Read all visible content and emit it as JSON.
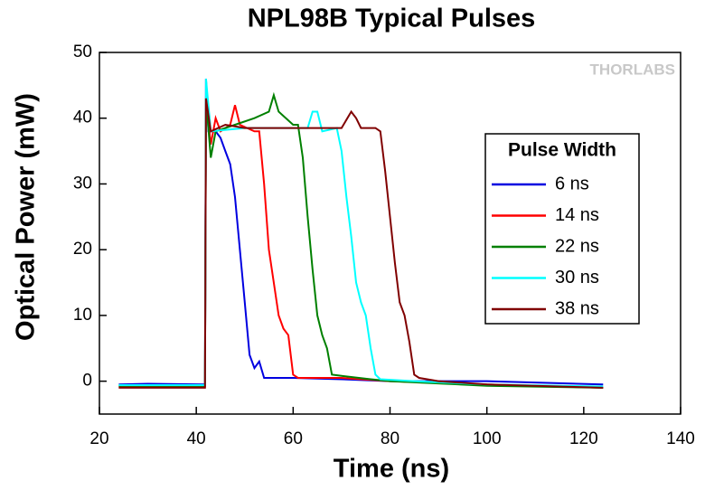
{
  "chart_data": {
    "type": "line",
    "title": "NPL98B Typical Pulses",
    "x_label": "Time (ns)",
    "y_label": "Optical Power (mW)",
    "watermark": "THORLABS",
    "legend_title": "Pulse Width",
    "legend": "right",
    "xlim": [
      20,
      140
    ],
    "xticks": [
      20,
      40,
      60,
      80,
      100,
      120,
      140
    ],
    "ylim": [
      -5,
      50
    ],
    "yticks": [
      0,
      10,
      20,
      30,
      40,
      50
    ],
    "series": [
      {
        "name": "6 ns",
        "color": "#0000e0",
        "x": [
          24,
          30,
          41.8,
          42,
          42.5,
          44,
          45,
          46,
          47,
          48,
          49,
          50,
          51,
          52,
          53,
          54,
          60,
          70,
          80,
          100,
          124
        ],
        "values": [
          -0.5,
          -0.4,
          -0.5,
          46,
          38,
          38,
          37,
          35,
          33,
          28,
          20,
          12,
          4,
          2,
          3,
          0.5,
          0.5,
          0.3,
          0,
          0,
          -0.5
        ]
      },
      {
        "name": "14 ns",
        "color": "#ff0000",
        "x": [
          24,
          30,
          41.8,
          42,
          43,
          44,
          45,
          47,
          48,
          49,
          52,
          53,
          54,
          55,
          57,
          58,
          59,
          60,
          61,
          70,
          80,
          100,
          124
        ],
        "values": [
          -0.8,
          -0.8,
          -0.8,
          43,
          36,
          40,
          38,
          39,
          42,
          39,
          38,
          38,
          30,
          20,
          10,
          8,
          7,
          1,
          0.5,
          0.5,
          0,
          -0.5,
          -1
        ]
      },
      {
        "name": "22 ns",
        "color": "#008000",
        "x": [
          24,
          30,
          41.8,
          42,
          43,
          44,
          48,
          52,
          55,
          56,
          57,
          60,
          61,
          62,
          63,
          64,
          65,
          66,
          67,
          68,
          70,
          76,
          80,
          100,
          124
        ],
        "values": [
          -0.7,
          -0.7,
          -0.7,
          43,
          34,
          38,
          39,
          40,
          41,
          43.5,
          41,
          39,
          39,
          34,
          25,
          17,
          10,
          7,
          5,
          1,
          0.8,
          0.3,
          0,
          -0.7,
          -1
        ]
      },
      {
        "name": "30 ns",
        "color": "#00ffff",
        "x": [
          24,
          30,
          41.8,
          42,
          43,
          50,
          60,
          63,
          64,
          65,
          66,
          69,
          70,
          71,
          72,
          73,
          74,
          75,
          76,
          77,
          78,
          85,
          100,
          124
        ],
        "values": [
          -0.6,
          -0.6,
          -0.6,
          46,
          38,
          38.5,
          38.5,
          38.5,
          41,
          41,
          38,
          38.5,
          35,
          28,
          22,
          15,
          12,
          10,
          5,
          1,
          0.3,
          0,
          -0.5,
          -0.8
        ]
      },
      {
        "name": "38 ns",
        "color": "#800000",
        "x": [
          24,
          30,
          41.8,
          42,
          43,
          46,
          50,
          60,
          70,
          72,
          73,
          74,
          77,
          78,
          79,
          80,
          81,
          82,
          83,
          84,
          85,
          86,
          90,
          100,
          124
        ],
        "values": [
          -1,
          -1,
          -1,
          43,
          38,
          39,
          38.5,
          38.5,
          38.5,
          41,
          40,
          38.5,
          38.5,
          38,
          32,
          25,
          18,
          12,
          10,
          6,
          1,
          0.5,
          0,
          -0.5,
          -1
        ]
      }
    ]
  }
}
